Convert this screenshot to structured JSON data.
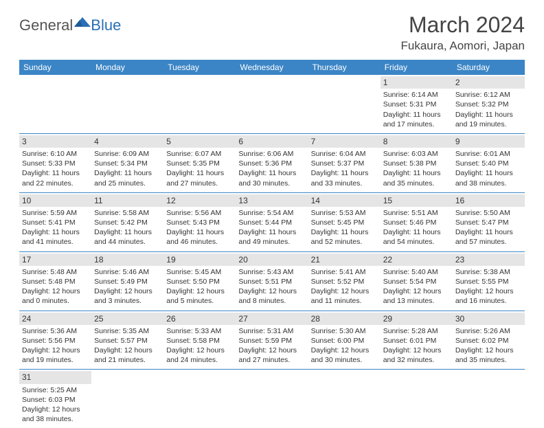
{
  "logo": {
    "general": "General",
    "blue": "Blue"
  },
  "title": "March 2024",
  "location": "Fukaura, Aomori, Japan",
  "colors": {
    "header_bg": "#3b85c6",
    "header_text": "#ffffff",
    "daynum_bg": "#e5e5e5",
    "rule": "#3b85c6",
    "logo_blue": "#2a6fb5"
  },
  "day_headers": [
    "Sunday",
    "Monday",
    "Tuesday",
    "Wednesday",
    "Thursday",
    "Friday",
    "Saturday"
  ],
  "weeks": [
    [
      null,
      null,
      null,
      null,
      null,
      {
        "n": "1",
        "sr": "Sunrise: 6:14 AM",
        "ss": "Sunset: 5:31 PM",
        "dl": "Daylight: 11 hours and 17 minutes."
      },
      {
        "n": "2",
        "sr": "Sunrise: 6:12 AM",
        "ss": "Sunset: 5:32 PM",
        "dl": "Daylight: 11 hours and 19 minutes."
      }
    ],
    [
      {
        "n": "3",
        "sr": "Sunrise: 6:10 AM",
        "ss": "Sunset: 5:33 PM",
        "dl": "Daylight: 11 hours and 22 minutes."
      },
      {
        "n": "4",
        "sr": "Sunrise: 6:09 AM",
        "ss": "Sunset: 5:34 PM",
        "dl": "Daylight: 11 hours and 25 minutes."
      },
      {
        "n": "5",
        "sr": "Sunrise: 6:07 AM",
        "ss": "Sunset: 5:35 PM",
        "dl": "Daylight: 11 hours and 27 minutes."
      },
      {
        "n": "6",
        "sr": "Sunrise: 6:06 AM",
        "ss": "Sunset: 5:36 PM",
        "dl": "Daylight: 11 hours and 30 minutes."
      },
      {
        "n": "7",
        "sr": "Sunrise: 6:04 AM",
        "ss": "Sunset: 5:37 PM",
        "dl": "Daylight: 11 hours and 33 minutes."
      },
      {
        "n": "8",
        "sr": "Sunrise: 6:03 AM",
        "ss": "Sunset: 5:38 PM",
        "dl": "Daylight: 11 hours and 35 minutes."
      },
      {
        "n": "9",
        "sr": "Sunrise: 6:01 AM",
        "ss": "Sunset: 5:40 PM",
        "dl": "Daylight: 11 hours and 38 minutes."
      }
    ],
    [
      {
        "n": "10",
        "sr": "Sunrise: 5:59 AM",
        "ss": "Sunset: 5:41 PM",
        "dl": "Daylight: 11 hours and 41 minutes."
      },
      {
        "n": "11",
        "sr": "Sunrise: 5:58 AM",
        "ss": "Sunset: 5:42 PM",
        "dl": "Daylight: 11 hours and 44 minutes."
      },
      {
        "n": "12",
        "sr": "Sunrise: 5:56 AM",
        "ss": "Sunset: 5:43 PM",
        "dl": "Daylight: 11 hours and 46 minutes."
      },
      {
        "n": "13",
        "sr": "Sunrise: 5:54 AM",
        "ss": "Sunset: 5:44 PM",
        "dl": "Daylight: 11 hours and 49 minutes."
      },
      {
        "n": "14",
        "sr": "Sunrise: 5:53 AM",
        "ss": "Sunset: 5:45 PM",
        "dl": "Daylight: 11 hours and 52 minutes."
      },
      {
        "n": "15",
        "sr": "Sunrise: 5:51 AM",
        "ss": "Sunset: 5:46 PM",
        "dl": "Daylight: 11 hours and 54 minutes."
      },
      {
        "n": "16",
        "sr": "Sunrise: 5:50 AM",
        "ss": "Sunset: 5:47 PM",
        "dl": "Daylight: 11 hours and 57 minutes."
      }
    ],
    [
      {
        "n": "17",
        "sr": "Sunrise: 5:48 AM",
        "ss": "Sunset: 5:48 PM",
        "dl": "Daylight: 12 hours and 0 minutes."
      },
      {
        "n": "18",
        "sr": "Sunrise: 5:46 AM",
        "ss": "Sunset: 5:49 PM",
        "dl": "Daylight: 12 hours and 3 minutes."
      },
      {
        "n": "19",
        "sr": "Sunrise: 5:45 AM",
        "ss": "Sunset: 5:50 PM",
        "dl": "Daylight: 12 hours and 5 minutes."
      },
      {
        "n": "20",
        "sr": "Sunrise: 5:43 AM",
        "ss": "Sunset: 5:51 PM",
        "dl": "Daylight: 12 hours and 8 minutes."
      },
      {
        "n": "21",
        "sr": "Sunrise: 5:41 AM",
        "ss": "Sunset: 5:52 PM",
        "dl": "Daylight: 12 hours and 11 minutes."
      },
      {
        "n": "22",
        "sr": "Sunrise: 5:40 AM",
        "ss": "Sunset: 5:54 PM",
        "dl": "Daylight: 12 hours and 13 minutes."
      },
      {
        "n": "23",
        "sr": "Sunrise: 5:38 AM",
        "ss": "Sunset: 5:55 PM",
        "dl": "Daylight: 12 hours and 16 minutes."
      }
    ],
    [
      {
        "n": "24",
        "sr": "Sunrise: 5:36 AM",
        "ss": "Sunset: 5:56 PM",
        "dl": "Daylight: 12 hours and 19 minutes."
      },
      {
        "n": "25",
        "sr": "Sunrise: 5:35 AM",
        "ss": "Sunset: 5:57 PM",
        "dl": "Daylight: 12 hours and 21 minutes."
      },
      {
        "n": "26",
        "sr": "Sunrise: 5:33 AM",
        "ss": "Sunset: 5:58 PM",
        "dl": "Daylight: 12 hours and 24 minutes."
      },
      {
        "n": "27",
        "sr": "Sunrise: 5:31 AM",
        "ss": "Sunset: 5:59 PM",
        "dl": "Daylight: 12 hours and 27 minutes."
      },
      {
        "n": "28",
        "sr": "Sunrise: 5:30 AM",
        "ss": "Sunset: 6:00 PM",
        "dl": "Daylight: 12 hours and 30 minutes."
      },
      {
        "n": "29",
        "sr": "Sunrise: 5:28 AM",
        "ss": "Sunset: 6:01 PM",
        "dl": "Daylight: 12 hours and 32 minutes."
      },
      {
        "n": "30",
        "sr": "Sunrise: 5:26 AM",
        "ss": "Sunset: 6:02 PM",
        "dl": "Daylight: 12 hours and 35 minutes."
      }
    ],
    [
      {
        "n": "31",
        "sr": "Sunrise: 5:25 AM",
        "ss": "Sunset: 6:03 PM",
        "dl": "Daylight: 12 hours and 38 minutes."
      },
      null,
      null,
      null,
      null,
      null,
      null
    ]
  ]
}
